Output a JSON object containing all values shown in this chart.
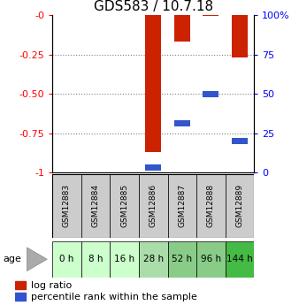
{
  "title": "GDS583 / 10.7.18",
  "samples": [
    "GSM12883",
    "GSM12884",
    "GSM12885",
    "GSM12886",
    "GSM12887",
    "GSM12888",
    "GSM12889"
  ],
  "ages": [
    "0 h",
    "8 h",
    "16 h",
    "28 h",
    "52 h",
    "96 h",
    "144 h"
  ],
  "log_ratio": [
    0.0,
    0.0,
    0.0,
    -0.87,
    -0.17,
    -0.005,
    -0.27
  ],
  "percentile_rank": [
    0.0,
    0.0,
    0.0,
    3.0,
    31.0,
    50.0,
    20.0
  ],
  "ylim_left": [
    -1.0,
    0.0
  ],
  "ylim_right": [
    0,
    100
  ],
  "yticks_left": [
    0,
    -0.25,
    -0.5,
    -0.75,
    -1.0
  ],
  "yticks_right": [
    0,
    25,
    50,
    75,
    100
  ],
  "bar_color_red": "#cc2200",
  "bar_color_blue": "#3355cc",
  "sample_box_color": "#cccccc",
  "age_row_colors": [
    "#ccffcc",
    "#ccffcc",
    "#ccffcc",
    "#aaddaa",
    "#88cc88",
    "#88cc88",
    "#44bb44"
  ],
  "title_fontsize": 11,
  "tick_fontsize": 8,
  "legend_fontsize": 8
}
